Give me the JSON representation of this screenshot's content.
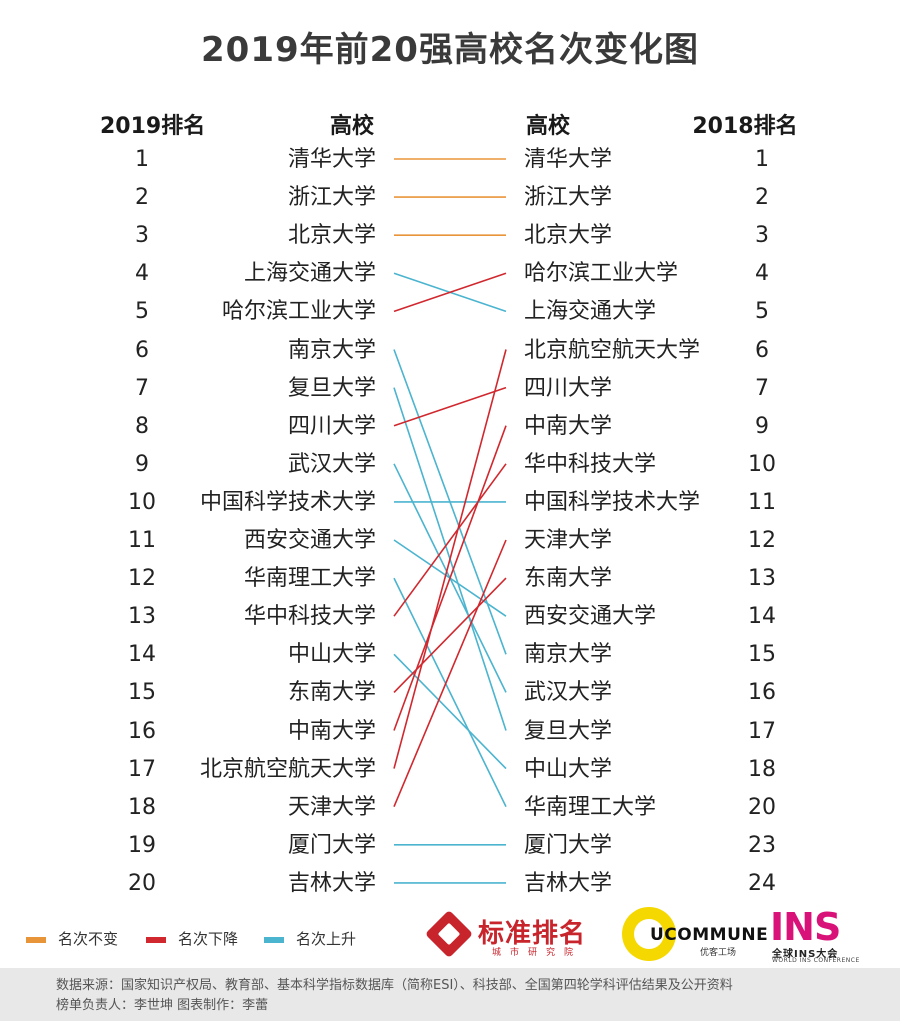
{
  "title": "2019年前20强高校名次变化图",
  "headers": {
    "rank_2019": "2019排名",
    "uni_2019": "高校",
    "uni_2018": "高校",
    "rank_2018": "2018排名"
  },
  "colors": {
    "unchanged": "#e8953a",
    "down": "#d0282e",
    "up": "#4bb4cf"
  },
  "legend": [
    {
      "key": "unchanged",
      "label": "名次不变"
    },
    {
      "key": "down",
      "label": "名次下降"
    },
    {
      "key": "up",
      "label": "名次上升"
    }
  ],
  "chart_data": {
    "type": "slope",
    "left_column": [
      {
        "rank": "1",
        "name": "清华大学"
      },
      {
        "rank": "2",
        "name": "浙江大学"
      },
      {
        "rank": "3",
        "name": "北京大学"
      },
      {
        "rank": "4",
        "name": "上海交通大学"
      },
      {
        "rank": "5",
        "name": "哈尔滨工业大学"
      },
      {
        "rank": "6",
        "name": "南京大学"
      },
      {
        "rank": "7",
        "name": "复旦大学"
      },
      {
        "rank": "8",
        "name": "四川大学"
      },
      {
        "rank": "9",
        "name": "武汉大学"
      },
      {
        "rank": "10",
        "name": "中国科学技术大学"
      },
      {
        "rank": "11",
        "name": "西安交通大学"
      },
      {
        "rank": "12",
        "name": "华南理工大学"
      },
      {
        "rank": "13",
        "name": "华中科技大学"
      },
      {
        "rank": "14",
        "name": "中山大学"
      },
      {
        "rank": "15",
        "name": "东南大学"
      },
      {
        "rank": "16",
        "name": "中南大学"
      },
      {
        "rank": "17",
        "name": "北京航空航天大学"
      },
      {
        "rank": "18",
        "name": "天津大学"
      },
      {
        "rank": "19",
        "name": "厦门大学"
      },
      {
        "rank": "20",
        "name": "吉林大学"
      }
    ],
    "right_column": [
      {
        "rank": "1",
        "name": "清华大学"
      },
      {
        "rank": "2",
        "name": "浙江大学"
      },
      {
        "rank": "3",
        "name": "北京大学"
      },
      {
        "rank": "4",
        "name": "哈尔滨工业大学"
      },
      {
        "rank": "5",
        "name": "上海交通大学"
      },
      {
        "rank": "6",
        "name": "北京航空航天大学"
      },
      {
        "rank": "7",
        "name": "四川大学"
      },
      {
        "rank": "9",
        "name": "中南大学"
      },
      {
        "rank": "10",
        "name": "华中科技大学"
      },
      {
        "rank": "11",
        "name": "中国科学技术大学"
      },
      {
        "rank": "12",
        "name": "天津大学"
      },
      {
        "rank": "13",
        "name": "东南大学"
      },
      {
        "rank": "14",
        "name": "西安交通大学"
      },
      {
        "rank": "15",
        "name": "南京大学"
      },
      {
        "rank": "16",
        "name": "武汉大学"
      },
      {
        "rank": "17",
        "name": "复旦大学"
      },
      {
        "rank": "18",
        "name": "中山大学"
      },
      {
        "rank": "20",
        "name": "华南理工大学"
      },
      {
        "rank": "23",
        "name": "厦门大学"
      },
      {
        "rank": "24",
        "name": "吉林大学"
      }
    ]
  },
  "logos": {
    "biaozhun": {
      "name": "标准排名",
      "sub": "城市研究院"
    },
    "ucommune": {
      "name": "UCOMMUNE",
      "sub": "优客工场"
    },
    "ins": {
      "name": "INS",
      "sub": "全球INS大会",
      "sub2": "WORLD INS CONFERENCE"
    }
  },
  "footer": {
    "line1": "数据来源：国家知识产权局、教育部、基本科学指标数据库（简称ESI）、科技部、全国第四轮学科评估结果及公开资料",
    "line2": "榜单负责人：李世坤  图表制作：李蕾"
  }
}
